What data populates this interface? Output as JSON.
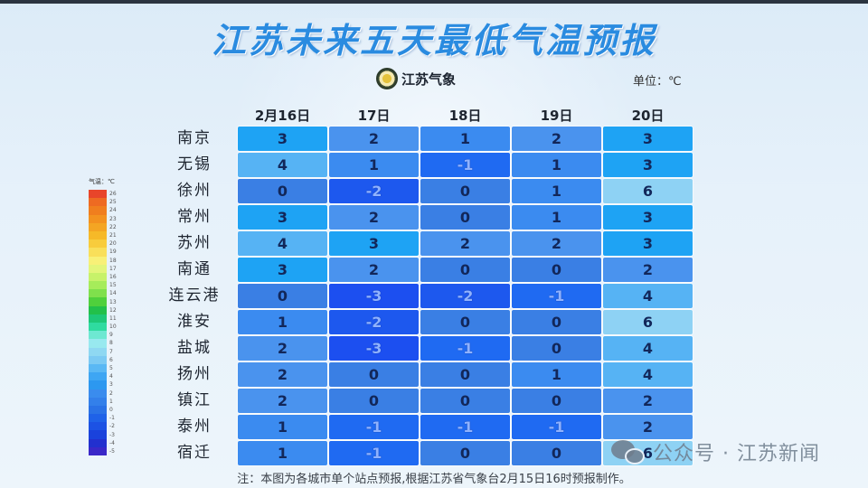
{
  "title": "江苏未来五天最低气温预报",
  "logo": {
    "icon": "meteorological-emblem-icon",
    "text": "江苏气象"
  },
  "unit": "单位：℃",
  "note": "注：本图为各城市单个站点预报,根据江苏省气象台2月15日16时预报制作。",
  "watermark": {
    "icon": "wechat-icon",
    "text": "公众号 · 江苏新闻"
  },
  "legend": {
    "title": "气温：℃",
    "items": [
      {
        "label": "26",
        "color": "#e8452a"
      },
      {
        "label": "25",
        "color": "#ee6a22"
      },
      {
        "label": "24",
        "color": "#f07e1e"
      },
      {
        "label": "23",
        "color": "#f3921f"
      },
      {
        "label": "22",
        "color": "#f4a523"
      },
      {
        "label": "21",
        "color": "#f6b928"
      },
      {
        "label": "20",
        "color": "#f8cc3c"
      },
      {
        "label": "19",
        "color": "#f9df5a"
      },
      {
        "label": "18",
        "color": "#f8f077"
      },
      {
        "label": "17",
        "color": "#e3f57a"
      },
      {
        "label": "16",
        "color": "#c7f26a"
      },
      {
        "label": "15",
        "color": "#a6ec5a"
      },
      {
        "label": "14",
        "color": "#7fe04c"
      },
      {
        "label": "13",
        "color": "#4fd03c"
      },
      {
        "label": "12",
        "color": "#22c04a"
      },
      {
        "label": "11",
        "color": "#1ec878"
      },
      {
        "label": "10",
        "color": "#2fdba0"
      },
      {
        "label": "9",
        "color": "#6ee8d2"
      },
      {
        "label": "8",
        "color": "#98e9ef"
      },
      {
        "label": "7",
        "color": "#8fd8f2"
      },
      {
        "label": "6",
        "color": "#7ccaf3"
      },
      {
        "label": "5",
        "color": "#5ab8f4"
      },
      {
        "label": "4",
        "color": "#3ea6f3"
      },
      {
        "label": "3",
        "color": "#2c98f0"
      },
      {
        "label": "2",
        "color": "#3a8cee"
      },
      {
        "label": "1",
        "color": "#3380ea"
      },
      {
        "label": "0",
        "color": "#2a72e6"
      },
      {
        "label": "-1",
        "color": "#1f62e8"
      },
      {
        "label": "-2",
        "color": "#1c52e4"
      },
      {
        "label": "-3",
        "color": "#1a42dc"
      },
      {
        "label": "-4",
        "color": "#2230cf"
      },
      {
        "label": "-5",
        "color": "#3a28c8"
      }
    ]
  },
  "chart_data": {
    "type": "heatmap",
    "title": "江苏未来五天最低气温预报",
    "unit": "℃",
    "columns": [
      "2月16日",
      "17日",
      "18日",
      "19日",
      "20日"
    ],
    "rows": [
      "南京",
      "无锡",
      "徐州",
      "常州",
      "苏州",
      "南通",
      "连云港",
      "淮安",
      "盐城",
      "扬州",
      "镇江",
      "泰州",
      "宿迁"
    ],
    "values": [
      [
        3,
        2,
        1,
        2,
        3
      ],
      [
        4,
        1,
        -1,
        1,
        3
      ],
      [
        0,
        -2,
        0,
        1,
        6
      ],
      [
        3,
        2,
        0,
        1,
        3
      ],
      [
        4,
        3,
        2,
        2,
        3
      ],
      [
        3,
        2,
        0,
        0,
        2
      ],
      [
        0,
        -3,
        -2,
        -1,
        4
      ],
      [
        1,
        -2,
        0,
        0,
        6
      ],
      [
        2,
        -3,
        -1,
        0,
        4
      ],
      [
        2,
        0,
        0,
        1,
        4
      ],
      [
        2,
        0,
        0,
        0,
        2
      ],
      [
        1,
        -1,
        -1,
        -1,
        2
      ],
      [
        1,
        -1,
        0,
        0,
        6
      ]
    ],
    "colorscale": {
      "min": -5,
      "max": 26
    },
    "note": "注：本图为各城市单个站点预报,根据江苏省气象台2月15日16时预报制作。"
  },
  "cell_colors": {
    "-3": "#1c4ff0",
    "-2": "#1d58ee",
    "-1": "#1f6af2",
    "0": "#3a7fe4",
    "1": "#3b8bf0",
    "2": "#4a93ee",
    "3": "#1ea3f4",
    "4": "#56b3f4",
    "6": "#8ed2f4"
  }
}
